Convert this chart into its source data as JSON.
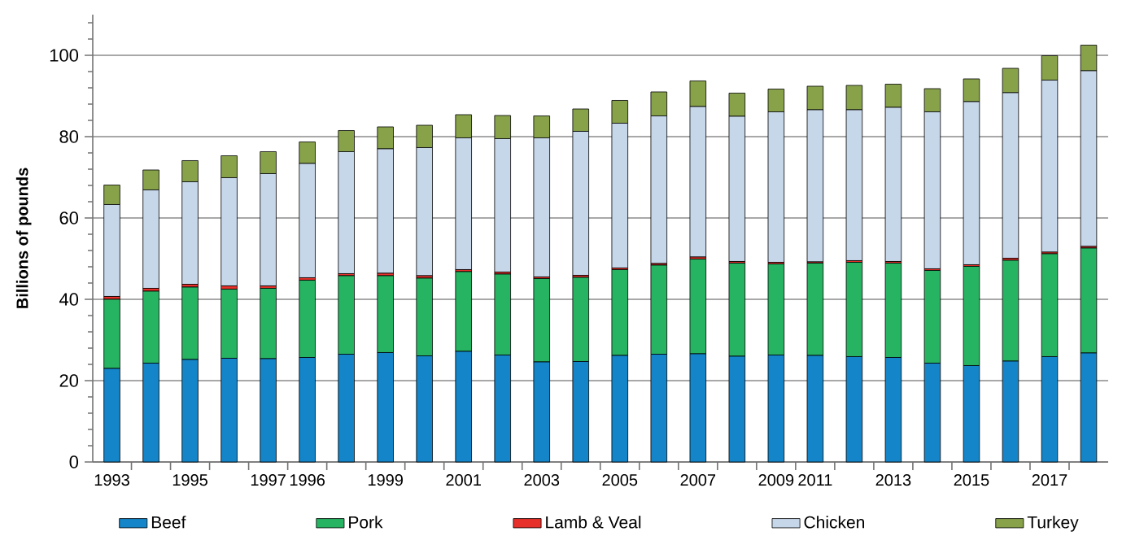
{
  "chart_data": {
    "type": "bar",
    "stacked": true,
    "ylabel": "Billions of pounds",
    "categories": [
      "1993",
      null,
      "1995",
      null,
      "1997",
      "1996",
      null,
      "1999",
      null,
      "2001",
      null,
      "2003",
      null,
      "2005",
      null,
      "2007",
      null,
      "2009",
      "2011",
      null,
      "2013",
      null,
      "2015",
      null,
      "2017",
      null
    ],
    "ylim": [
      0,
      110
    ],
    "yticks": [
      0,
      20,
      40,
      60,
      80,
      100,
      {
        "value": 4,
        "label": null
      },
      {
        "value": 8,
        "label": null
      },
      {
        "value": 12,
        "label": null
      },
      {
        "value": 16,
        "label": null
      },
      {
        "value": 24,
        "label": null
      },
      {
        "value": 28,
        "label": null
      },
      {
        "value": 32,
        "label": null
      },
      {
        "value": 36,
        "label": null
      },
      {
        "value": 44,
        "label": null
      },
      {
        "value": 48,
        "label": null
      },
      {
        "value": 52,
        "label": null
      },
      {
        "value": 56,
        "label": null
      },
      {
        "value": 64,
        "label": null
      },
      {
        "value": 68,
        "label": null
      },
      {
        "value": 72,
        "label": null
      },
      {
        "value": 76,
        "label": null
      },
      {
        "value": 84,
        "label": null
      },
      {
        "value": 88,
        "label": null
      },
      {
        "value": 92,
        "label": null
      },
      {
        "value": 96,
        "label": null
      },
      {
        "value": 104,
        "label": null
      },
      {
        "value": 108,
        "label": null
      }
    ],
    "grid": "y",
    "legend": "bottom",
    "series": [
      {
        "name": "Beef",
        "color": "#1385c8",
        "values": [
          23.0,
          24.3,
          25.2,
          25.5,
          25.4,
          25.7,
          26.5,
          26.9,
          26.1,
          27.2,
          26.3,
          24.6,
          24.7,
          26.2,
          26.5,
          26.6,
          26.0,
          26.3,
          26.2,
          25.9,
          25.7,
          24.3,
          23.7,
          24.8,
          25.9,
          26.8
        ]
      },
      {
        "name": "Pork",
        "color": "#27b462",
        "values": [
          17.0,
          17.7,
          17.8,
          17.0,
          17.3,
          19.0,
          19.3,
          18.9,
          19.1,
          19.6,
          19.9,
          20.5,
          20.7,
          21.1,
          21.9,
          23.3,
          22.9,
          22.4,
          22.7,
          23.2,
          23.2,
          22.8,
          24.4,
          24.8,
          25.3,
          25.8
        ]
      },
      {
        "name": "Lamb & Veal",
        "color": "#e8302a",
        "values": [
          0.7,
          0.7,
          0.7,
          0.8,
          0.6,
          0.6,
          0.5,
          0.6,
          0.6,
          0.5,
          0.5,
          0.4,
          0.5,
          0.4,
          0.4,
          0.5,
          0.4,
          0.4,
          0.3,
          0.4,
          0.4,
          0.4,
          0.4,
          0.5,
          0.4,
          0.4
        ]
      },
      {
        "name": "Chicken",
        "color": "#c7d7ea",
        "values": [
          22.6,
          24.2,
          25.2,
          26.6,
          27.6,
          28.1,
          30.0,
          30.6,
          31.5,
          32.4,
          32.8,
          34.2,
          35.4,
          35.6,
          36.3,
          37.0,
          35.7,
          37.0,
          37.4,
          37.1,
          37.9,
          38.6,
          40.1,
          40.7,
          42.3,
          43.2
        ]
      },
      {
        "name": "Turkey",
        "color": "#88a24a",
        "values": [
          4.8,
          4.9,
          5.2,
          5.4,
          5.4,
          5.3,
          5.2,
          5.4,
          5.5,
          5.7,
          5.7,
          5.4,
          5.5,
          5.6,
          5.9,
          6.3,
          5.7,
          5.6,
          5.8,
          6.0,
          5.7,
          5.7,
          5.6,
          6.0,
          6.0,
          6.3
        ]
      }
    ]
  }
}
